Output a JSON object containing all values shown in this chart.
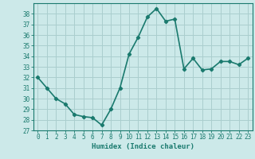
{
  "x": [
    0,
    1,
    2,
    3,
    4,
    5,
    6,
    7,
    8,
    9,
    10,
    11,
    12,
    13,
    14,
    15,
    16,
    17,
    18,
    19,
    20,
    21,
    22,
    23
  ],
  "y": [
    32,
    31,
    30,
    29.5,
    28.5,
    28.3,
    28.2,
    27.5,
    29,
    31,
    34.2,
    35.8,
    37.7,
    38.5,
    37.3,
    37.5,
    32.8,
    33.8,
    32.7,
    32.8,
    33.5,
    33.5,
    33.2,
    33.8
  ],
  "line_color": "#1a7a6e",
  "marker": "D",
  "marker_size": 2.2,
  "bg_color": "#cce9e9",
  "grid_color": "#aacece",
  "xlabel": "Humidex (Indice chaleur)",
  "xlabel_fontsize": 6.5,
  "ylabel_ticks": [
    27,
    28,
    29,
    30,
    31,
    32,
    33,
    34,
    35,
    36,
    37,
    38
  ],
  "xlim": [
    -0.5,
    23.5
  ],
  "ylim": [
    27,
    39
  ],
  "xtick_labels": [
    "0",
    "1",
    "2",
    "3",
    "4",
    "5",
    "6",
    "7",
    "8",
    "9",
    "10",
    "11",
    "12",
    "13",
    "14",
    "15",
    "16",
    "17",
    "18",
    "19",
    "20",
    "21",
    "22",
    "23"
  ],
  "tick_fontsize": 5.5,
  "linewidth": 1.2
}
